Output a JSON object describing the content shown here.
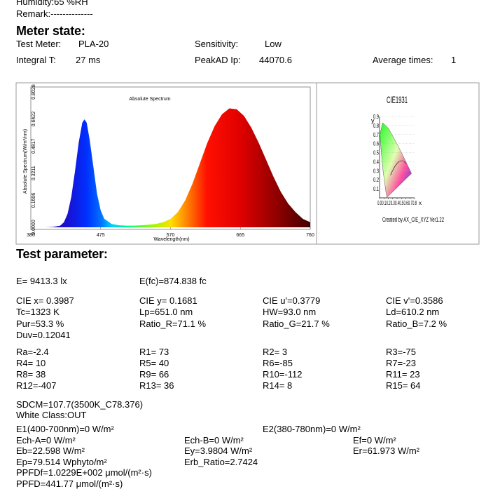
{
  "header": {
    "humidity": "Humidity:65 %RH",
    "remark": "Remark:--------------"
  },
  "meter_state": {
    "title": "Meter state:",
    "fields": [
      {
        "label": "Test Meter:",
        "value": "PLA-20"
      },
      {
        "label": "Sensitivity:",
        "value": "Low"
      },
      {
        "label": "Integral T:",
        "value": "27 ms"
      },
      {
        "label": "PeakAD Ip:",
        "value": "44070.6"
      },
      {
        "label": "Average times:",
        "value": "1"
      }
    ]
  },
  "spectrum": {
    "type": "area",
    "title": "Absolute Spectrum",
    "x_label": "Wavelength(nm)",
    "y_label": "Absolute Spectrum(W/m²/nm)",
    "x": [
      380,
      400,
      410,
      420,
      425,
      430,
      435,
      440,
      445,
      450,
      453,
      456,
      460,
      465,
      470,
      475,
      480,
      490,
      500,
      510,
      520,
      530,
      540,
      550,
      560,
      570,
      580,
      590,
      600,
      610,
      620,
      630,
      640,
      650,
      660,
      670,
      680,
      690,
      700,
      710,
      720,
      730,
      740,
      750,
      760
    ],
    "values": [
      0,
      0,
      0.002,
      0.01,
      0.03,
      0.08,
      0.18,
      0.33,
      0.5,
      0.62,
      0.64,
      0.62,
      0.52,
      0.36,
      0.2,
      0.1,
      0.05,
      0.02,
      0.012,
      0.01,
      0.01,
      0.012,
      0.015,
      0.02,
      0.03,
      0.05,
      0.09,
      0.16,
      0.26,
      0.38,
      0.5,
      0.6,
      0.67,
      0.705,
      0.7,
      0.66,
      0.59,
      0.5,
      0.4,
      0.3,
      0.21,
      0.14,
      0.09,
      0.05,
      0.03
    ],
    "xlim": [
      380,
      760
    ],
    "xticks": [
      380,
      475,
      570,
      665,
      760
    ],
    "ylim": [
      0,
      0.8028
    ],
    "yticks": [
      {
        "value": 0,
        "label": "0.0000"
      },
      0.1606,
      0.3211,
      0.4817,
      0.6422,
      0.8028
    ]
  },
  "cie": {
    "title": "CIE1931",
    "x_label": "x",
    "y_label": "y",
    "xlim": [
      0,
      0.8
    ],
    "ylim": [
      0,
      0.9
    ],
    "xticks": [
      {
        "value": 0,
        "label": "0.0"
      },
      0.1,
      0.2,
      0.3,
      0.4,
      0.5,
      0.6,
      0.7,
      0.8
    ],
    "yticks": [
      0.1,
      0.2,
      0.3,
      0.4,
      0.5,
      0.6,
      0.7,
      0.8,
      0.9
    ],
    "credit": "Created by AX_CIE_XYZ Ver1.22"
  },
  "test_parameter": {
    "title": "Test parameter:",
    "groups": [
      [
        [
          "E= 9413.3 lx",
          "E(fc)=874.838 fc"
        ]
      ],
      [
        [
          "CIE x= 0.3987",
          "CIE y= 0.1681",
          "CIE u'=0.3779",
          "CIE v'=0.3586"
        ],
        [
          "Tc=1323 K",
          "Lp=651.0 nm",
          "HW=93.0 nm",
          "Ld=610.2 nm"
        ],
        [
          "Pur=53.3 %",
          "Ratio_R=71.1 %",
          "Ratio_G=21.7 %",
          "Ratio_B=7.2 %"
        ],
        [
          "Duv=0.12041"
        ]
      ],
      [
        [
          "Ra=-2.4",
          "R1= 73",
          "R2= 3",
          "R3=-75"
        ],
        [
          "R4= 10",
          "R5= 40",
          "R6=-85",
          "R7=-23"
        ],
        [
          "R8= 38",
          "R9= 66",
          "R10=-112",
          "R11= 23"
        ],
        [
          "R12=-407",
          "R13= 36",
          "R14= 8",
          "R15= 64"
        ]
      ],
      [
        [
          "SDCM=107.7(3500K_C78.376)"
        ],
        [
          "White Class:OUT"
        ]
      ]
    ]
  },
  "energy": {
    "e1": "E1(400-700nm)=0 W/m²",
    "e2": "E2(380-780nm)=0 W/m²",
    "ech_a": "Ech-A=0 W/m²",
    "ech_b": "Ech-B=0 W/m²",
    "ef": "Ef=0 W/m²",
    "eb": "Eb=22.598 W/m²",
    "ey": "Ey=3.9804 W/m²",
    "er": "Er=61.973 W/m²",
    "ep": "Ep=79.514 Wphyto/m²",
    "erb": "Erb_Ratio=2.7424",
    "ppfdf": "PPFDf=1.0229E+002 μmol/(m²·s)",
    "ppfd": "PPFD=441.77 μmol/(m²·s)"
  }
}
